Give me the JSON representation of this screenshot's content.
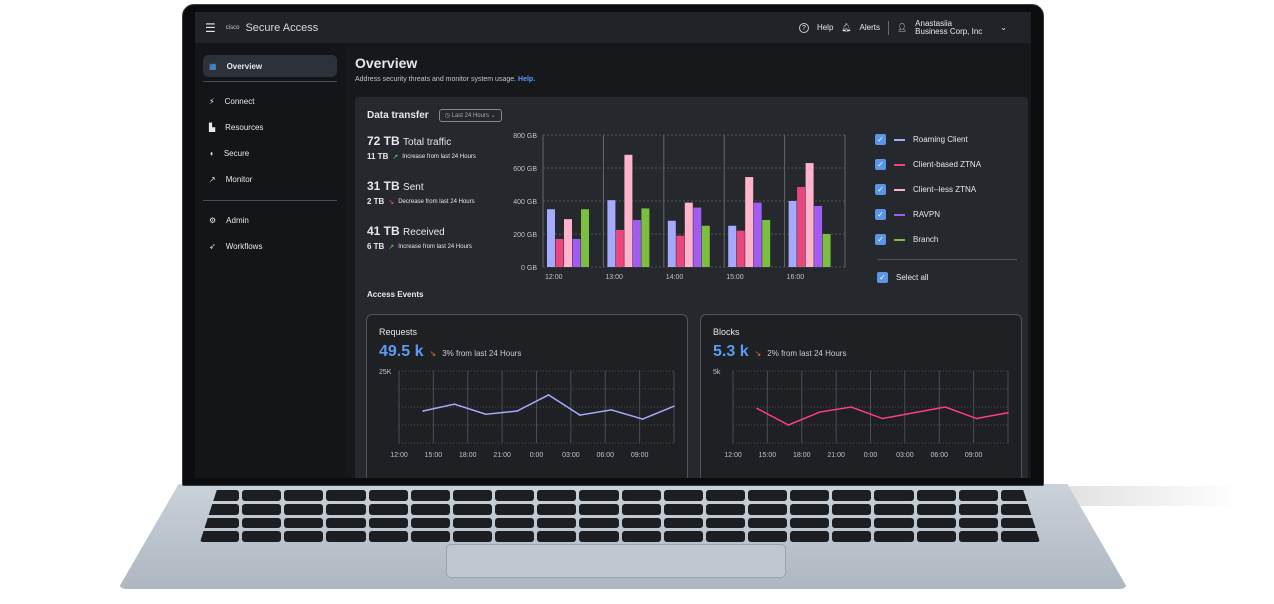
{
  "app": {
    "title": "Secure Access",
    "logo": "cisco",
    "help": "Help",
    "alerts": "Alerts",
    "user_name": "Anastasiia",
    "user_org": "Business Corp, Inc"
  },
  "sidebar": {
    "items": [
      {
        "label": "Overview",
        "icon": "overview-icon",
        "active": true
      },
      {
        "label": "Connect",
        "icon": "plug-icon"
      },
      {
        "label": "Resources",
        "icon": "resources-icon"
      },
      {
        "label": "Secure",
        "icon": "shield-icon"
      },
      {
        "label": "Monitor",
        "icon": "chart-line-icon"
      },
      {
        "label": "Admin",
        "icon": "user-gear-icon"
      },
      {
        "label": "Workflows",
        "icon": "rocket-icon"
      }
    ]
  },
  "page": {
    "title": "Overview",
    "subtitle": "Address security threats and monitor system usage.",
    "help_link": "Help."
  },
  "data_transfer": {
    "title": "Data transfer",
    "range": "Last 24 Hours",
    "stats": [
      {
        "value": "72 TB",
        "label": "Total traffic",
        "delta": "11 TB",
        "trend": "up",
        "note": "Increase from last 24 Hours"
      },
      {
        "value": "31 TB",
        "label": "Sent",
        "delta": "2 TB",
        "trend": "down",
        "note": "Decrease from last 24 Hours"
      },
      {
        "value": "41 TB",
        "label": "Received",
        "delta": "6 TB",
        "trend": "up",
        "note": "Increase from last 24 Hours"
      }
    ],
    "select_all": "Select all"
  },
  "access_events": {
    "title": "Access Events"
  },
  "chart_data": [
    {
      "type": "bar",
      "title": "Data transfer",
      "categories": [
        "12:00",
        "13:00",
        "14:00",
        "15:00",
        "16:00"
      ],
      "yticks": [
        "0 GB",
        "200 GB",
        "400 GB",
        "600 GB",
        "800 GB"
      ],
      "ylim": [
        0,
        800
      ],
      "unit": "GB",
      "series": [
        {
          "name": "Roaming Client",
          "color": "#a3aaff",
          "values": [
            350,
            405,
            280,
            250,
            400
          ]
        },
        {
          "name": "Client-based ZTNA",
          "color": "#e8467c",
          "values": [
            170,
            225,
            190,
            220,
            485
          ]
        },
        {
          "name": "Client--less ZTNA",
          "color": "#ffb3cc",
          "values": [
            290,
            680,
            390,
            545,
            630
          ]
        },
        {
          "name": "RAVPN",
          "color": "#a25cf2",
          "values": [
            170,
            285,
            360,
            390,
            370
          ]
        },
        {
          "name": "Branch",
          "color": "#7cbf3f",
          "values": [
            350,
            355,
            250,
            285,
            200
          ]
        }
      ]
    },
    {
      "type": "line",
      "title": "Requests",
      "value": "49.5 k",
      "delta": "3% from last 24 Hours",
      "ymax_label": "25K",
      "ylim": [
        0,
        25
      ],
      "color": "#a3aaff",
      "xticks": [
        "12:00",
        "15:00",
        "18:00",
        "21:00",
        "0:00",
        "03:00",
        "06:00",
        "09:00"
      ],
      "values": [
        11.1,
        13.5,
        10,
        11.1,
        16.7,
        9.7,
        11.5,
        8.3,
        12.8
      ]
    },
    {
      "type": "line",
      "title": "Blocks",
      "value": "5.3 k",
      "delta": "2% from last 24 Hours",
      "ymax_label": "5k",
      "ylim": [
        0,
        5
      ],
      "color": "#ff3d85",
      "xticks": [
        "12:00",
        "15:00",
        "18:00",
        "21:00",
        "0:00",
        "03:00",
        "06:00",
        "09:00"
      ],
      "values": [
        2.4,
        1.25,
        2.15,
        2.5,
        1.7,
        2.1,
        2.5,
        1.7,
        2.1
      ]
    }
  ]
}
